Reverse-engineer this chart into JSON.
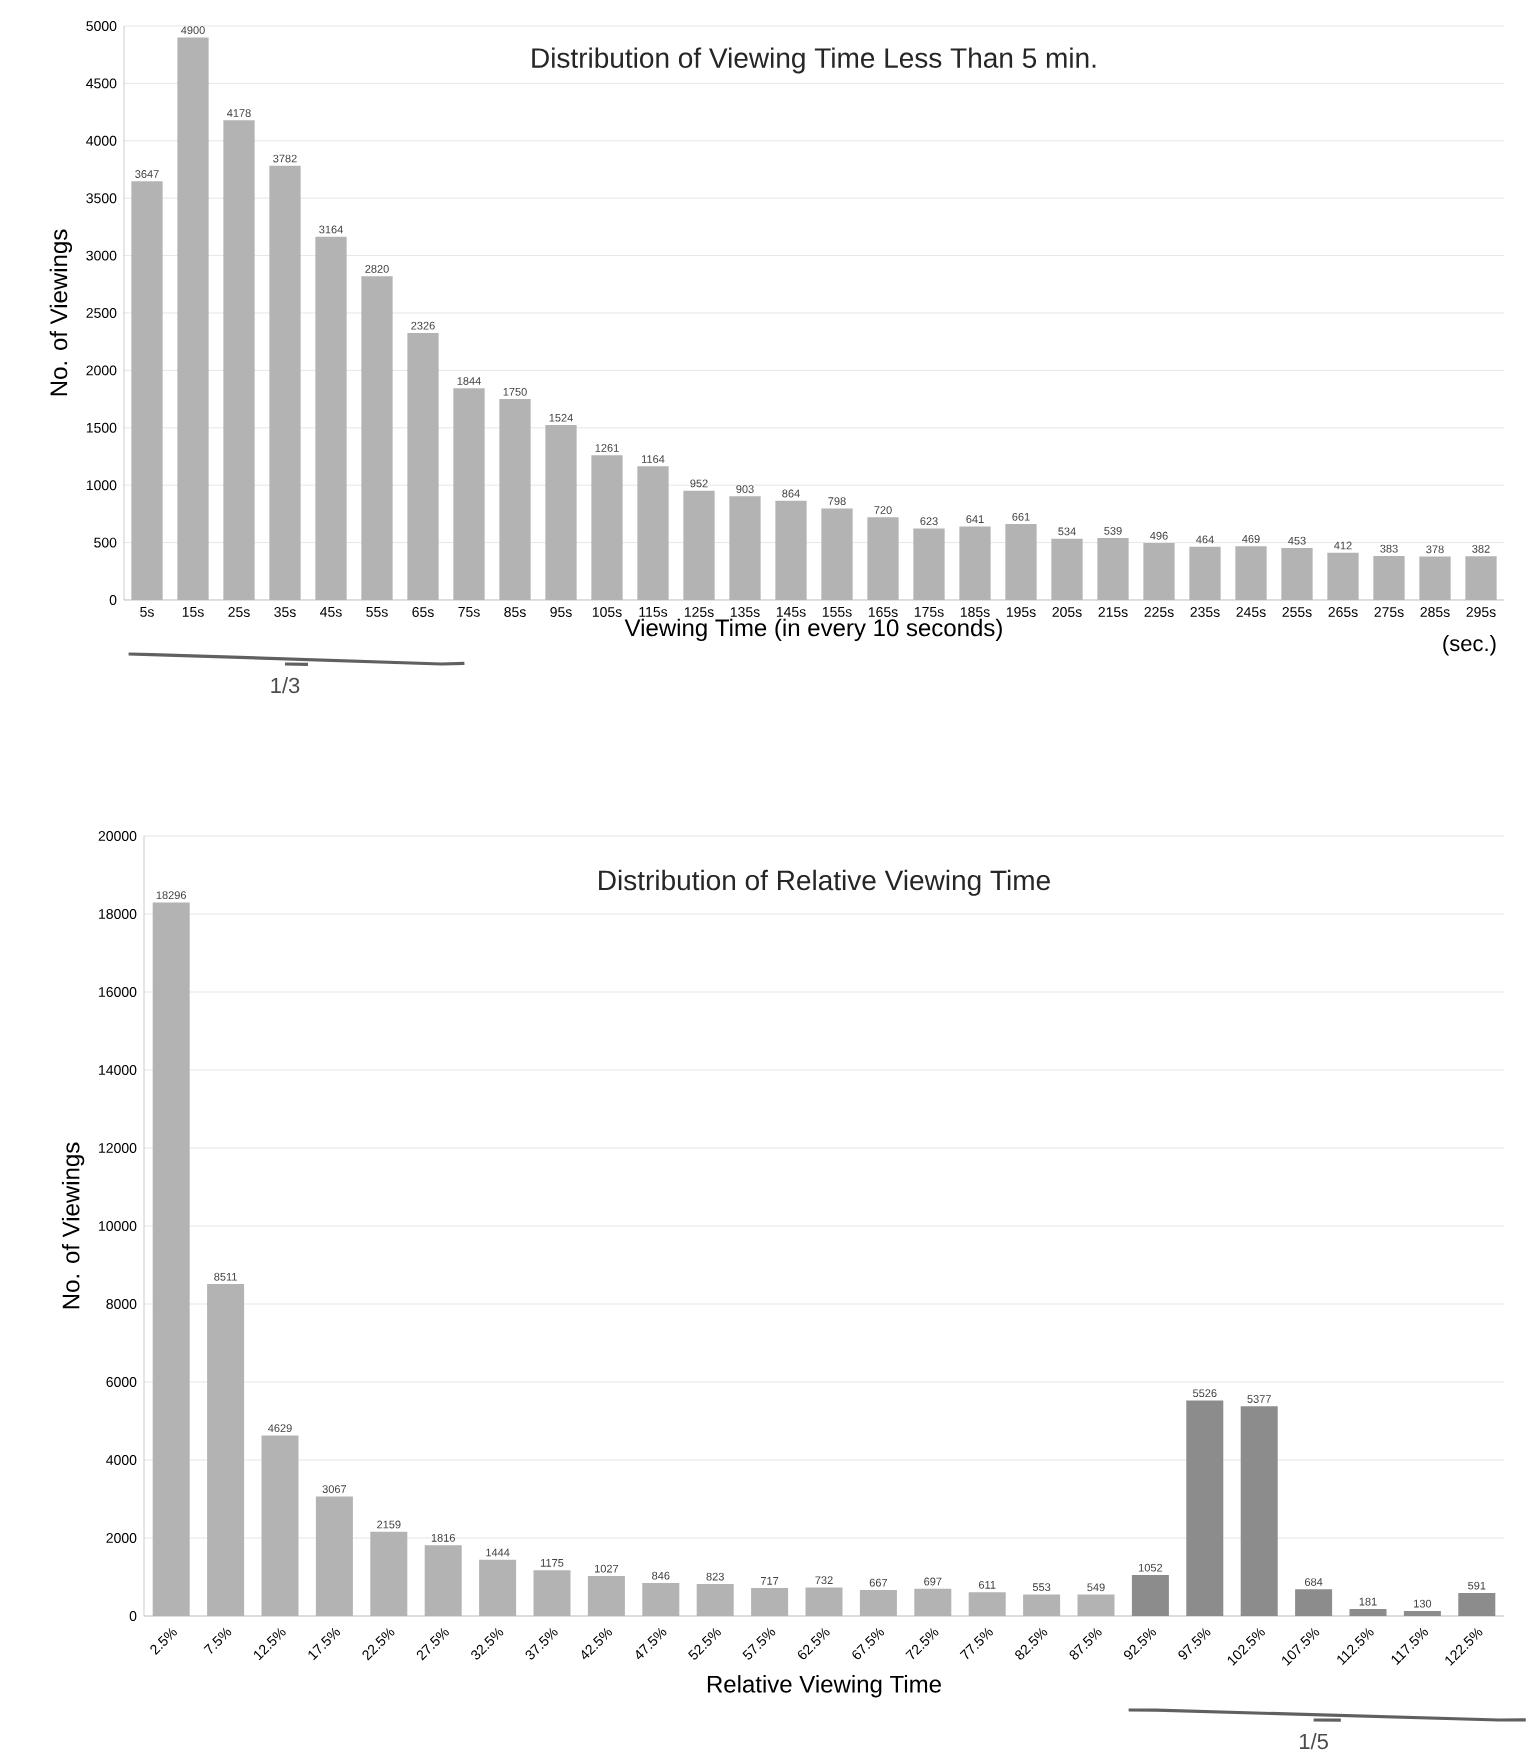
{
  "chart_data": [
    {
      "type": "bar",
      "title": "Distribution of Viewing Time Less Than 5 min.",
      "xlabel": "Viewing Time (in every 10 seconds)",
      "ylabel": "No. of Viewings",
      "categories": [
        "5s",
        "15s",
        "25s",
        "35s",
        "45s",
        "55s",
        "65s",
        "75s",
        "85s",
        "95s",
        "105s",
        "115s",
        "125s",
        "135s",
        "145s",
        "155s",
        "165s",
        "175s",
        "185s",
        "195s",
        "205s",
        "215s",
        "225s",
        "235s",
        "245s",
        "255s",
        "265s",
        "275s",
        "285s",
        "295s"
      ],
      "values": [
        3647,
        4900,
        4178,
        3782,
        3164,
        2820,
        2326,
        1844,
        1750,
        1524,
        1261,
        1164,
        952,
        903,
        864,
        798,
        720,
        623,
        641,
        661,
        534,
        539,
        496,
        464,
        469,
        453,
        412,
        383,
        378,
        382
      ],
      "color": "#b3b3b3",
      "ylim": [
        0,
        5000
      ],
      "yticks": [
        0,
        500,
        1000,
        1500,
        2000,
        2500,
        3000,
        3500,
        4000,
        4500,
        5000
      ],
      "grid": "y",
      "data_labels": true,
      "annotations": [
        "(sec.)",
        "1/3"
      ]
    },
    {
      "type": "bar",
      "title": "Distribution of Relative Viewing Time",
      "xlabel": "Relative Viewing Time",
      "ylabel": "No. of Viewings",
      "categories": [
        "2.5%",
        "7.5%",
        "12.5%",
        "17.5%",
        "22.5%",
        "27.5%",
        "32.5%",
        "37.5%",
        "42.5%",
        "47.5%",
        "52.5%",
        "57.5%",
        "62.5%",
        "67.5%",
        "72.5%",
        "77.5%",
        "82.5%",
        "87.5%",
        "92.5%",
        "97.5%",
        "102.5%",
        "107.5%",
        "112.5%",
        "117.5%",
        "122.5%"
      ],
      "values": [
        18296,
        8511,
        4629,
        3067,
        2159,
        1816,
        1444,
        1175,
        1027,
        846,
        823,
        717,
        732,
        667,
        697,
        611,
        553,
        549,
        1052,
        5526,
        5377,
        684,
        181,
        130,
        591
      ],
      "colors": [
        "#b3b3b3",
        "#b3b3b3",
        "#b3b3b3",
        "#b3b3b3",
        "#b3b3b3",
        "#b3b3b3",
        "#b3b3b3",
        "#b3b3b3",
        "#b3b3b3",
        "#b3b3b3",
        "#b3b3b3",
        "#b3b3b3",
        "#b3b3b3",
        "#b3b3b3",
        "#b3b3b3",
        "#b3b3b3",
        "#b3b3b3",
        "#b3b3b3",
        "#8c8c8c",
        "#8c8c8c",
        "#8c8c8c",
        "#8c8c8c",
        "#8c8c8c",
        "#8c8c8c",
        "#8c8c8c"
      ],
      "ylim": [
        0,
        20000
      ],
      "yticks": [
        0,
        2000,
        4000,
        6000,
        8000,
        10000,
        12000,
        14000,
        16000,
        18000,
        20000
      ],
      "grid": "y",
      "data_labels": true,
      "annotations": [
        "1/5"
      ]
    }
  ]
}
